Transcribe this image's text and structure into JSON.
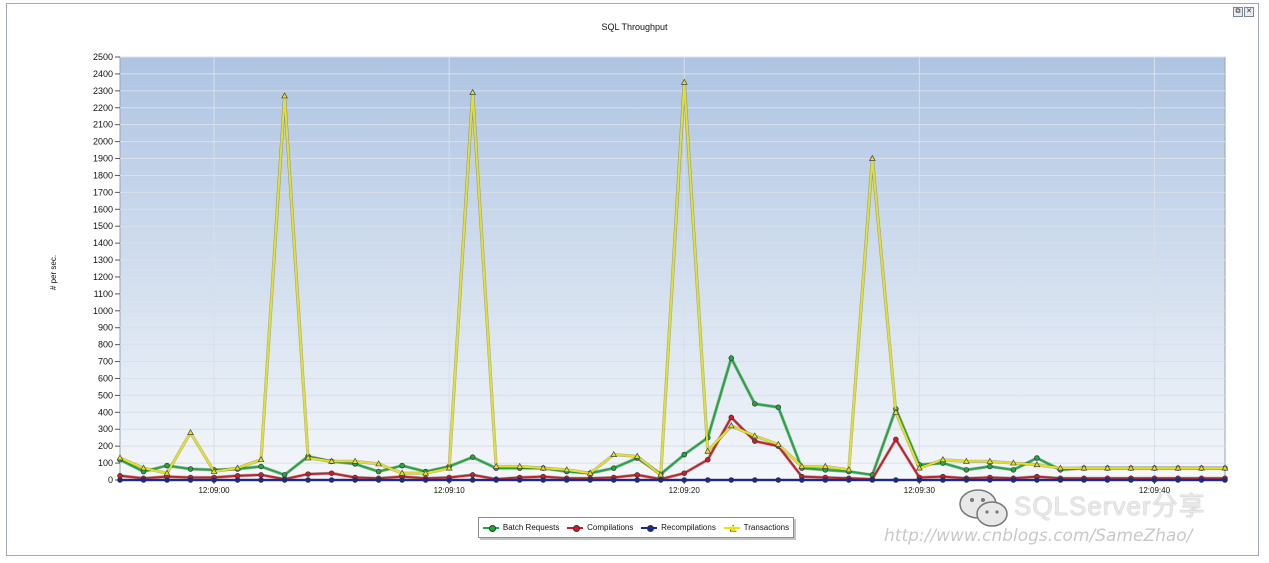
{
  "window": {
    "title": "SQL Throughput",
    "restore_label": "⧉",
    "close_label": "✕"
  },
  "watermark": {
    "brand": "SQLServer分享",
    "url": "http://www.cnblogs.com/SameZhao/",
    "logo_icon": "wechat-icon"
  },
  "chart_data": {
    "type": "line",
    "title": "SQL Throughput",
    "ylabel": "# per sec.",
    "xlabel": "",
    "ylim": [
      0,
      2500
    ],
    "y_ticks": [
      0,
      100,
      200,
      300,
      400,
      500,
      600,
      700,
      800,
      900,
      1000,
      1100,
      1200,
      1300,
      1400,
      1500,
      1600,
      1700,
      1800,
      1900,
      2000,
      2100,
      2200,
      2300,
      2400,
      2500
    ],
    "x_ticks": [
      {
        "t": 4,
        "label": "12:09:00"
      },
      {
        "t": 14,
        "label": "12:09:10"
      },
      {
        "t": 24,
        "label": "12:09:20"
      },
      {
        "t": 34,
        "label": "12:09:30"
      },
      {
        "t": 44,
        "label": "12:09:40"
      }
    ],
    "x": [
      0,
      1,
      2,
      3,
      4,
      5,
      6,
      7,
      8,
      9,
      10,
      11,
      12,
      13,
      14,
      15,
      16,
      17,
      18,
      19,
      20,
      21,
      22,
      23,
      24,
      25,
      26,
      27,
      28,
      29,
      30,
      31,
      32,
      33,
      34,
      35,
      36,
      37,
      38,
      39,
      40,
      41,
      42,
      43,
      44,
      45,
      46,
      47
    ],
    "series": [
      {
        "name": "Batch Requests",
        "color": "#1faa3c",
        "marker": "circle",
        "values": [
          120,
          50,
          85,
          65,
          60,
          65,
          80,
          30,
          140,
          110,
          95,
          50,
          85,
          50,
          80,
          135,
          70,
          70,
          70,
          50,
          40,
          70,
          130,
          35,
          150,
          250,
          720,
          450,
          430,
          70,
          60,
          50,
          30,
          420,
          90,
          100,
          60,
          80,
          60,
          130,
          60,
          70,
          70,
          70,
          70,
          70,
          70,
          70
        ]
      },
      {
        "name": "Compilations",
        "color": "#c8202a",
        "marker": "circle",
        "values": [
          25,
          10,
          20,
          15,
          15,
          25,
          30,
          5,
          35,
          40,
          15,
          10,
          20,
          10,
          15,
          30,
          5,
          15,
          20,
          10,
          10,
          15,
          30,
          5,
          40,
          120,
          370,
          230,
          200,
          20,
          15,
          10,
          5,
          240,
          15,
          20,
          10,
          15,
          10,
          20,
          10,
          10,
          10,
          10,
          10,
          10,
          10,
          10
        ]
      },
      {
        "name": "Recompilations",
        "color": "#1a2a8c",
        "marker": "circle",
        "values": [
          0,
          0,
          0,
          0,
          0,
          0,
          0,
          0,
          0,
          0,
          0,
          0,
          0,
          0,
          0,
          0,
          0,
          0,
          0,
          0,
          0,
          0,
          0,
          0,
          0,
          0,
          0,
          0,
          0,
          0,
          0,
          0,
          0,
          0,
          0,
          0,
          0,
          0,
          0,
          0,
          0,
          0,
          0,
          0,
          0,
          0,
          0,
          0
        ]
      },
      {
        "name": "Transactions",
        "color": "#e6e21a",
        "marker": "triangle",
        "values": [
          130,
          70,
          40,
          280,
          50,
          70,
          120,
          2270,
          130,
          110,
          110,
          95,
          40,
          40,
          70,
          2290,
          80,
          80,
          70,
          60,
          40,
          150,
          140,
          30,
          2350,
          170,
          320,
          260,
          210,
          80,
          80,
          60,
          1900,
          400,
          70,
          120,
          110,
          110,
          100,
          90,
          70,
          70,
          70,
          70,
          70,
          70,
          70,
          70
        ]
      }
    ]
  }
}
